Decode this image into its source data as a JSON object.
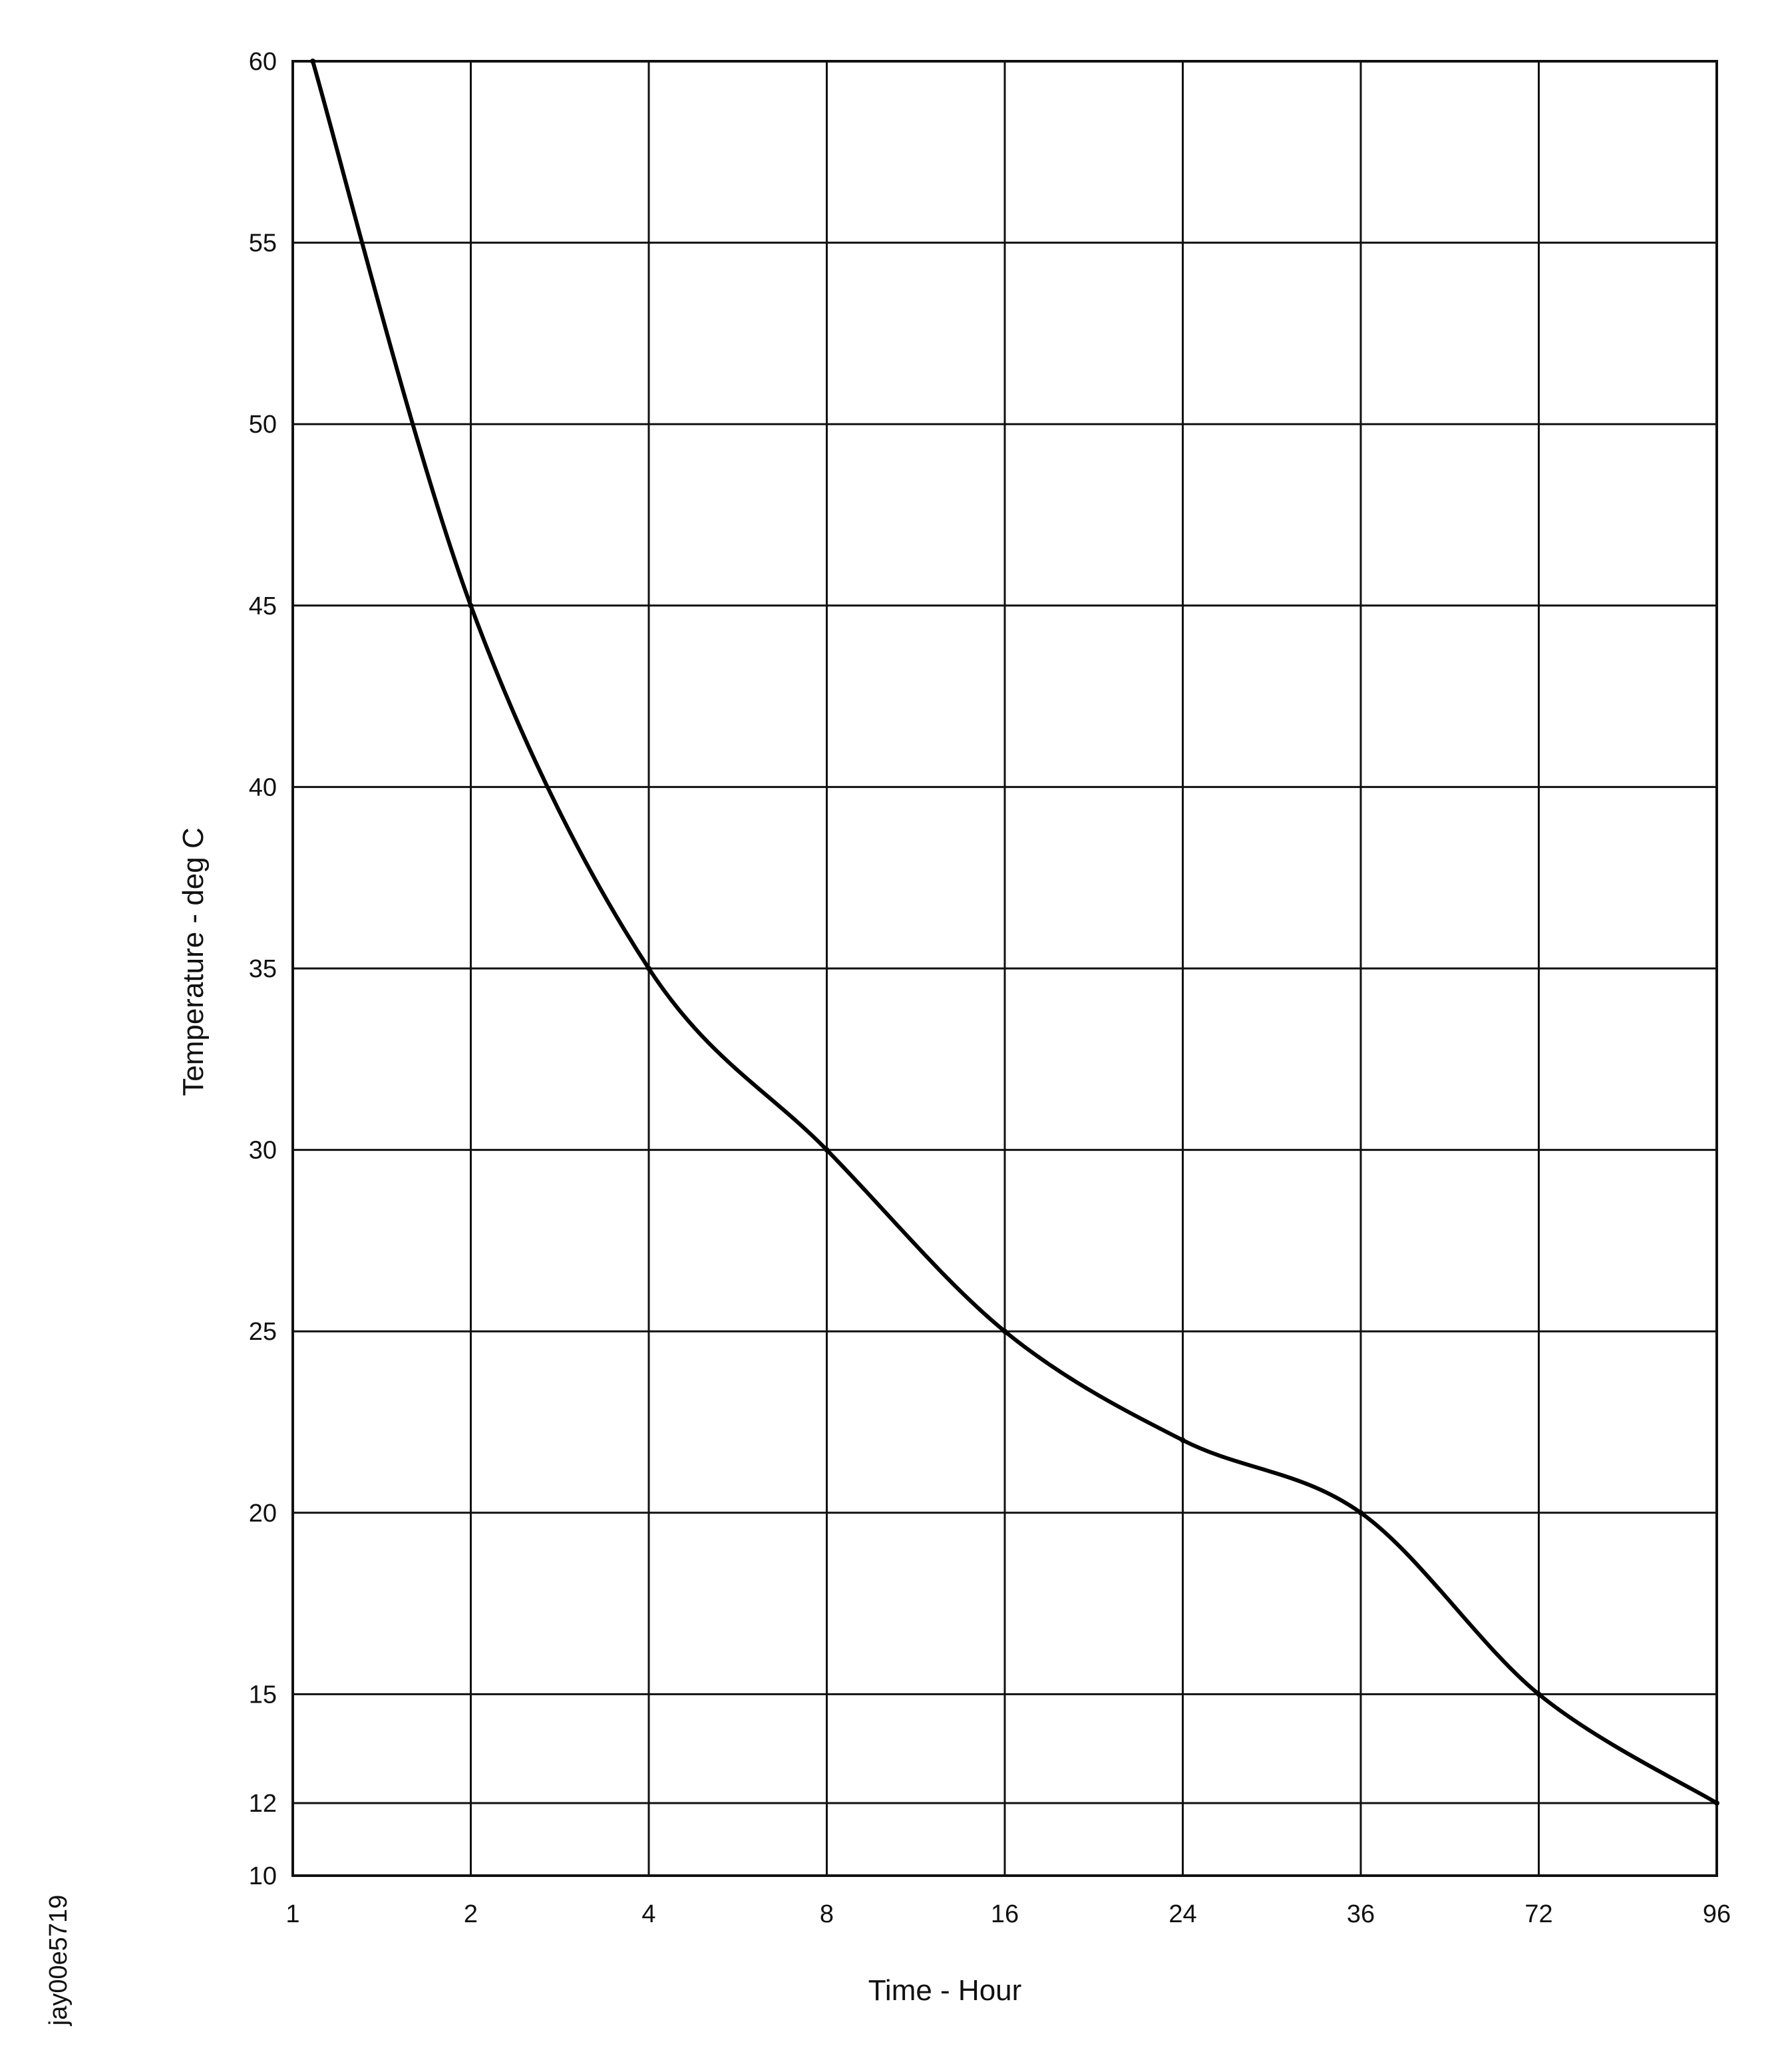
{
  "chart_data": {
    "type": "line",
    "title": "",
    "xlabel": "Time - Hour",
    "ylabel": "Temperature - deg  C",
    "x_scale": "categorical, evenly spaced ticks",
    "x_ticks": [
      "1",
      "2",
      "4",
      "8",
      "16",
      "24",
      "36",
      "72",
      "96"
    ],
    "y_ticks": [
      10,
      12,
      15,
      20,
      25,
      30,
      35,
      40,
      45,
      50,
      55,
      60
    ],
    "ylim": [
      10,
      60
    ],
    "grid": true,
    "series": [
      {
        "values": [
          {
            "x": 1,
            "y": 60
          },
          {
            "x": 2,
            "y": 45
          },
          {
            "x": 4,
            "y": 35
          },
          {
            "x": 8,
            "y": 30
          },
          {
            "x": 16,
            "y": 25
          },
          {
            "x": 24,
            "y": 22
          },
          {
            "x": 36,
            "y": 20
          },
          {
            "x": 72,
            "y": 15
          },
          {
            "x": 96,
            "y": 12
          }
        ]
      }
    ]
  },
  "side_code": "jay00e5719"
}
